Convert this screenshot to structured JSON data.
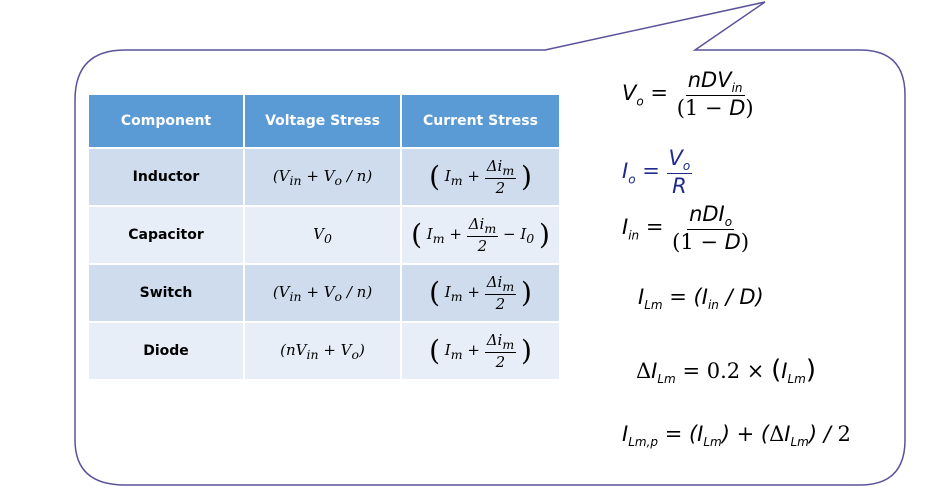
{
  "table": {
    "headers": [
      "Component",
      "Voltage Stress",
      "Current Stress"
    ],
    "rows": [
      {
        "component": "Inductor",
        "voltage": "(V_in + V_o / n)",
        "current": "(I_m + Δi_m / 2)"
      },
      {
        "component": "Capacitor",
        "voltage": "V_0",
        "current": "(I_m + Δi_m / 2 − I_0)"
      },
      {
        "component": "Switch",
        "voltage": "(V_in + V_o / n)",
        "current": "(I_m + Δi_m / 2)"
      },
      {
        "component": "Diode",
        "voltage": "(nV_in + V_o)",
        "current": "(I_m + Δi_m / 2)"
      }
    ]
  },
  "equations": [
    "V_o = nDV_in / (1 − D)",
    "I_o = V_o / R",
    "I_in = nDI_o / (1 − D)",
    "I_Lm = (I_in / D)",
    "ΔI_Lm = 0.2 × (I_Lm)",
    "I_Lm,p = (I_Lm) + (ΔI_Lm) / 2"
  ],
  "colors": {
    "header_bg": "#5b9bd5",
    "row_dark": "#cfdcee",
    "row_light": "#e8eef7",
    "bubble_outline": "#5a5399",
    "io_equation": "#1f2a8c"
  }
}
